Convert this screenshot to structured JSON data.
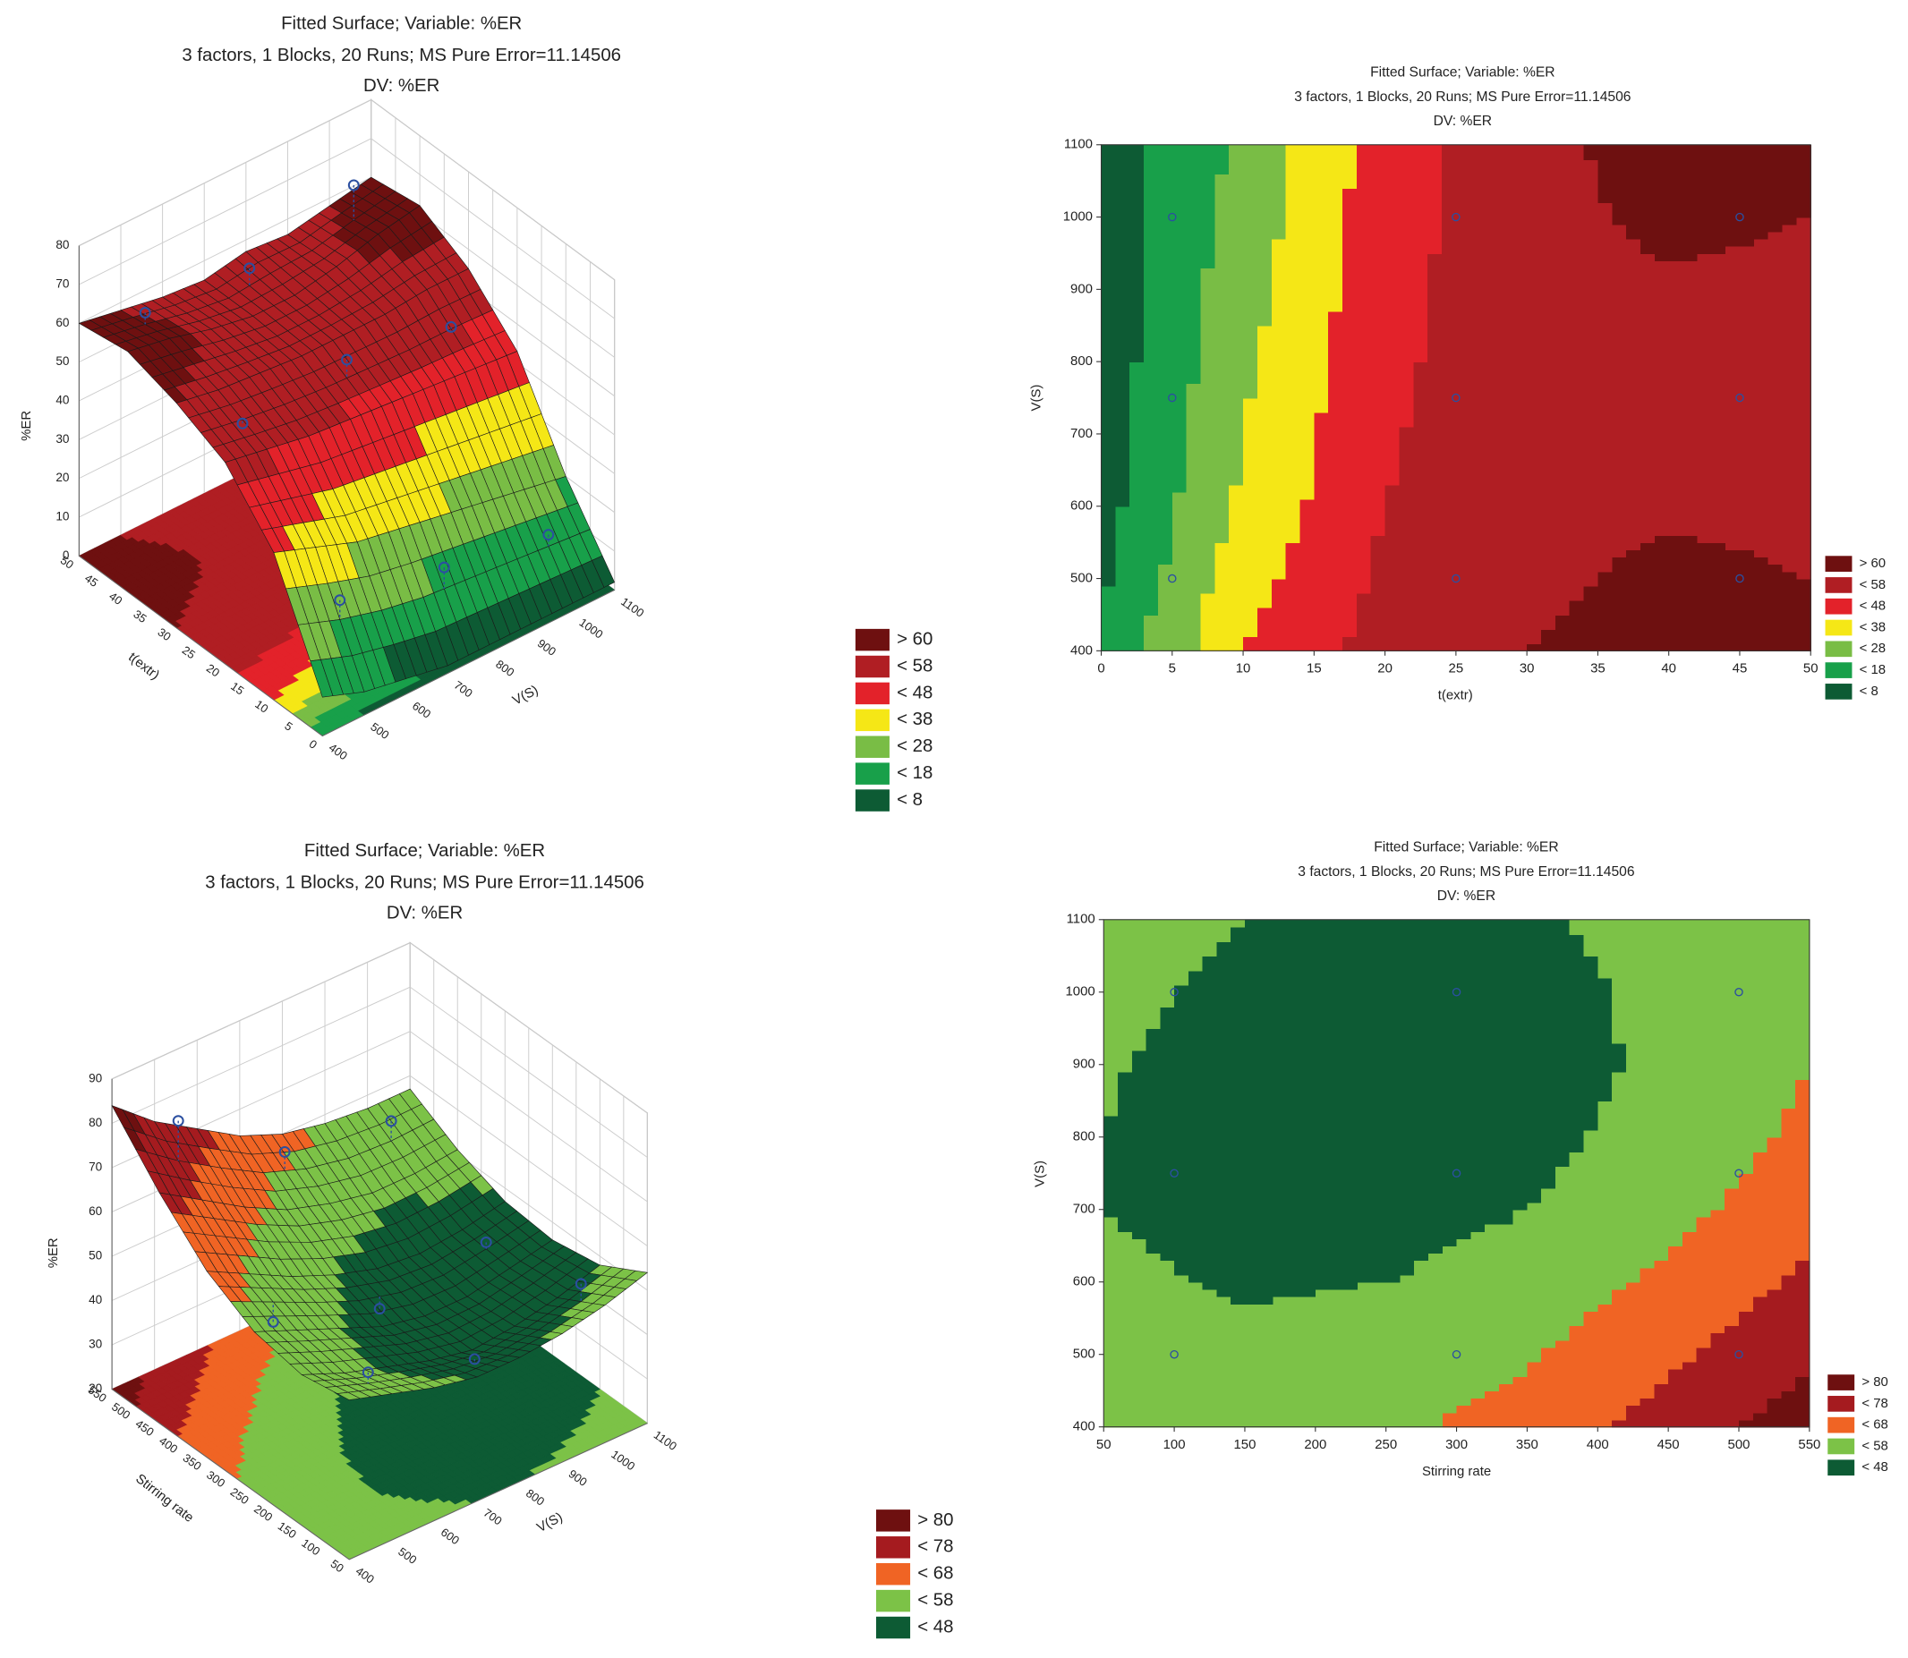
{
  "chart_data": [
    {
      "type": "surface3d",
      "title": "Fitted Surface; Variable: %ER",
      "subtitle": "3 factors, 1 Blocks, 20 Runs; MS Pure Error=11.14506",
      "note": "DV: %ER",
      "xlabel": "t(extr)",
      "ylabel": "V(S)",
      "zlabel": "%ER",
      "xlim": [
        0,
        50
      ],
      "xticks": [
        0,
        5,
        10,
        15,
        20,
        25,
        30,
        35,
        40,
        45,
        50
      ],
      "ylim": [
        400,
        1100
      ],
      "yticks": [
        400,
        500,
        600,
        700,
        800,
        900,
        1000,
        1100
      ],
      "zlim": [
        0,
        80
      ],
      "zticks": [
        0,
        10,
        20,
        30,
        40,
        50,
        60,
        70,
        80
      ],
      "grid_x": [
        0,
        10,
        20,
        30,
        40,
        50
      ],
      "grid_y": [
        400,
        500,
        600,
        700,
        800,
        900,
        1000,
        1100
      ],
      "z": [
        [
          10,
          38,
          52,
          58,
          62,
          60
        ],
        [
          6,
          34,
          50,
          56,
          60,
          58
        ],
        [
          4,
          30,
          48,
          55,
          57,
          56
        ],
        [
          2,
          28,
          47,
          54,
          55,
          55
        ],
        [
          2,
          26,
          46,
          54,
          55,
          57
        ],
        [
          2,
          24,
          45,
          54,
          57,
          56
        ],
        [
          2,
          22,
          44,
          55,
          60,
          58
        ],
        [
          2,
          20,
          43,
          55,
          62,
          60
        ]
      ],
      "levels": [
        {
          "value": 60,
          "label": "> 60",
          "color": "#6e1010"
        },
        {
          "value": 58,
          "label": "< 58",
          "color": "#b01e23"
        },
        {
          "value": 48,
          "label": "< 48",
          "color": "#e3222a"
        },
        {
          "value": 38,
          "label": "< 38",
          "color": "#f5e716"
        },
        {
          "value": 28,
          "label": "< 28",
          "color": "#79bd45"
        },
        {
          "value": 18,
          "label": "< 18",
          "color": "#18a04a"
        },
        {
          "value": 8,
          "label": "< 8",
          "color": "#0d5b34"
        }
      ],
      "series": [
        {
          "color": "#2b4fa0",
          "x": [
            5,
            25,
            45,
            5,
            25,
            45,
            5,
            25,
            45
          ],
          "y": [
            1000,
            1000,
            1000,
            750,
            750,
            750,
            500,
            500,
            500
          ],
          "z": [
            15,
            50,
            68,
            20,
            55,
            60,
            25,
            52,
            62
          ]
        }
      ]
    },
    {
      "type": "contour",
      "title": "Fitted Surface; Variable: %ER",
      "subtitle": "3 factors, 1 Blocks, 20 Runs; MS Pure Error=11.14506",
      "note": "DV: %ER",
      "xlabel": "t(extr)",
      "ylabel": "V(S)",
      "xlim": [
        0,
        50
      ],
      "xticks": [
        0,
        5,
        10,
        15,
        20,
        25,
        30,
        35,
        40,
        45,
        50
      ],
      "ylim": [
        400,
        1100
      ],
      "yticks": [
        400,
        500,
        600,
        700,
        800,
        900,
        1000,
        1100
      ],
      "grid_x": [
        0,
        10,
        20,
        30,
        40,
        50
      ],
      "grid_y": [
        400,
        500,
        600,
        700,
        800,
        900,
        1000,
        1100
      ],
      "z": [
        [
          10,
          38,
          52,
          58,
          62,
          60
        ],
        [
          6,
          34,
          50,
          56,
          60,
          58
        ],
        [
          4,
          30,
          48,
          55,
          57,
          56
        ],
        [
          2,
          28,
          47,
          54,
          55,
          55
        ],
        [
          2,
          26,
          46,
          54,
          55,
          57
        ],
        [
          2,
          24,
          45,
          54,
          57,
          56
        ],
        [
          2,
          22,
          44,
          55,
          60,
          58
        ],
        [
          2,
          20,
          43,
          55,
          62,
          60
        ]
      ],
      "levels": [
        {
          "value": 60,
          "label": "> 60",
          "color": "#6e1010"
        },
        {
          "value": 58,
          "label": "< 58",
          "color": "#b01e23"
        },
        {
          "value": 48,
          "label": "< 48",
          "color": "#e3222a"
        },
        {
          "value": 38,
          "label": "< 38",
          "color": "#f5e716"
        },
        {
          "value": 28,
          "label": "< 28",
          "color": "#79bd45"
        },
        {
          "value": 18,
          "label": "< 18",
          "color": "#18a04a"
        },
        {
          "value": 8,
          "label": "< 8",
          "color": "#0d5b34"
        }
      ],
      "series": [
        {
          "color": "#2b4fa0",
          "x": [
            5,
            25,
            45,
            5,
            25,
            45,
            5,
            25,
            45
          ],
          "y": [
            1000,
            1000,
            1000,
            750,
            750,
            750,
            500,
            500,
            500
          ]
        }
      ]
    },
    {
      "type": "surface3d",
      "title": "Fitted Surface; Variable: %ER",
      "subtitle": "3 factors, 1 Blocks, 20 Runs; MS Pure Error=11.14506",
      "note": "DV: %ER",
      "xlabel": "Stirring rate",
      "ylabel": "V(S)",
      "zlabel": "%ER",
      "xlim": [
        50,
        550
      ],
      "xticks": [
        50,
        100,
        150,
        200,
        250,
        300,
        350,
        400,
        450,
        500,
        550
      ],
      "ylim": [
        400,
        1100
      ],
      "yticks": [
        400,
        500,
        600,
        700,
        800,
        900,
        1000,
        1100
      ],
      "zlim": [
        20,
        90
      ],
      "zticks": [
        20,
        30,
        40,
        50,
        60,
        70,
        80,
        90
      ],
      "grid_x": [
        50,
        150,
        250,
        350,
        450,
        550
      ],
      "grid_y": [
        400,
        500,
        600,
        700,
        800,
        900,
        1000,
        1100
      ],
      "z": [
        [
          56,
          54,
          56,
          62,
          72,
          84
        ],
        [
          53,
          50,
          52,
          57,
          66,
          76
        ],
        [
          50,
          47,
          48,
          52,
          60,
          70
        ],
        [
          48,
          44,
          44,
          48,
          55,
          64
        ],
        [
          48,
          42,
          42,
          45,
          52,
          60
        ],
        [
          49,
          43,
          42,
          44,
          50,
          58
        ],
        [
          51,
          45,
          44,
          45,
          50,
          57
        ],
        [
          54,
          48,
          46,
          47,
          51,
          57
        ]
      ],
      "levels": [
        {
          "value": 80,
          "label": "> 80",
          "color": "#6e1010"
        },
        {
          "value": 78,
          "label": "< 78",
          "color": "#a51b1f"
        },
        {
          "value": 68,
          "label": "< 68",
          "color": "#f06424"
        },
        {
          "value": 58,
          "label": "< 58",
          "color": "#7cc247"
        },
        {
          "value": 48,
          "label": "< 48",
          "color": "#0d5b34"
        }
      ],
      "series": [
        {
          "color": "#2b4fa0",
          "x": [
            100,
            300,
            500,
            100,
            300,
            500,
            100,
            300,
            500
          ],
          "y": [
            1000,
            1000,
            1000,
            750,
            750,
            750,
            500,
            500,
            500
          ],
          "z": [
            52,
            46,
            58,
            46,
            42,
            62,
            54,
            50,
            80
          ]
        }
      ]
    },
    {
      "type": "contour",
      "title": "Fitted Surface; Variable: %ER",
      "subtitle": "3 factors, 1 Blocks, 20 Runs; MS Pure Error=11.14506",
      "note": "DV: %ER",
      "xlabel": "Stirring rate",
      "ylabel": "V(S)",
      "xlim": [
        50,
        550
      ],
      "xticks": [
        50,
        100,
        150,
        200,
        250,
        300,
        350,
        400,
        450,
        500,
        550
      ],
      "ylim": [
        400,
        1100
      ],
      "yticks": [
        400,
        500,
        600,
        700,
        800,
        900,
        1000,
        1100
      ],
      "grid_x": [
        50,
        150,
        250,
        350,
        450,
        550
      ],
      "grid_y": [
        400,
        500,
        600,
        700,
        800,
        900,
        1000,
        1100
      ],
      "z": [
        [
          56,
          54,
          56,
          62,
          72,
          84
        ],
        [
          53,
          50,
          52,
          57,
          66,
          76
        ],
        [
          50,
          47,
          48,
          52,
          60,
          70
        ],
        [
          48,
          44,
          44,
          48,
          55,
          64
        ],
        [
          48,
          42,
          42,
          45,
          52,
          60
        ],
        [
          49,
          43,
          42,
          44,
          50,
          58
        ],
        [
          51,
          45,
          44,
          45,
          50,
          57
        ],
        [
          54,
          48,
          46,
          47,
          51,
          57
        ]
      ],
      "levels": [
        {
          "value": 80,
          "label": "> 80",
          "color": "#6e1010"
        },
        {
          "value": 78,
          "label": "< 78",
          "color": "#a51b1f"
        },
        {
          "value": 68,
          "label": "< 68",
          "color": "#f06424"
        },
        {
          "value": 58,
          "label": "< 58",
          "color": "#7cc247"
        },
        {
          "value": 48,
          "label": "< 48",
          "color": "#0d5b34"
        }
      ],
      "series": [
        {
          "color": "#2b4fa0",
          "x": [
            100,
            300,
            500,
            100,
            300,
            500,
            100,
            300,
            500
          ],
          "y": [
            1000,
            1000,
            1000,
            750,
            750,
            750,
            500,
            500,
            500
          ]
        }
      ]
    }
  ]
}
